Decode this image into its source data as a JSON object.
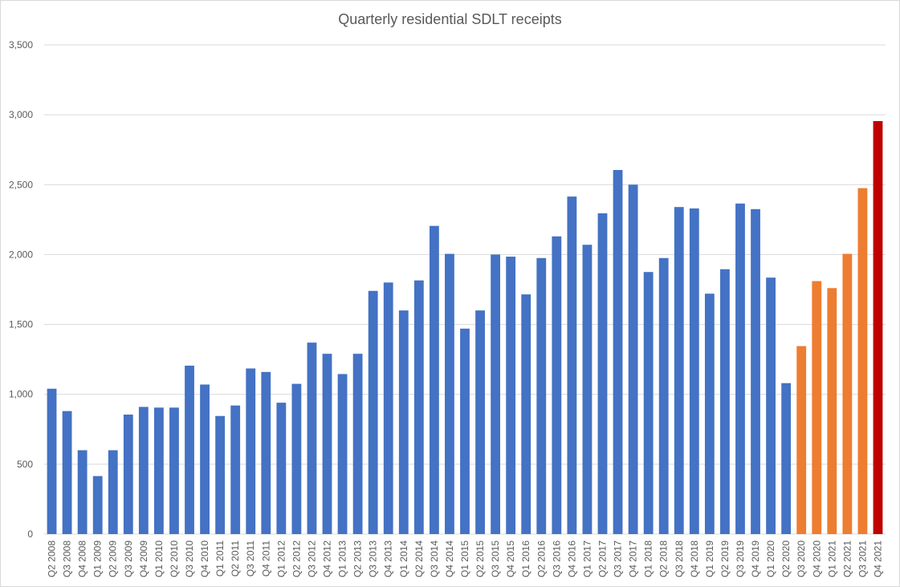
{
  "chart_data": {
    "type": "bar",
    "title": "Quarterly residential SDLT receipts",
    "xlabel": "",
    "ylabel": "",
    "ylim": [
      0,
      3500
    ],
    "yticks": [
      0,
      500,
      1000,
      1500,
      2000,
      2500,
      3000,
      3500
    ],
    "ytick_labels": [
      "0",
      "500",
      "1,000",
      "1,500",
      "2,000",
      "2,500",
      "3,000",
      "3,500"
    ],
    "grid": true,
    "legend": "none",
    "categories": [
      "Q2 2008",
      "Q3 2008",
      "Q4 2008",
      "Q1 2009",
      "Q2 2009",
      "Q3 2009",
      "Q4 2009",
      "Q1 2010",
      "Q2 2010",
      "Q3 2010",
      "Q4 2010",
      "Q1 2011",
      "Q2 2011",
      "Q3 2011",
      "Q4 2011",
      "Q1 2012",
      "Q2 2012",
      "Q3 2012",
      "Q4 2012",
      "Q1 2013",
      "Q2 2013",
      "Q3 2013",
      "Q4 2013",
      "Q1 2014",
      "Q2 2014",
      "Q3 2014",
      "Q4 2014",
      "Q1 2015",
      "Q2 2015",
      "Q3 2015",
      "Q4 2015",
      "Q1 2016",
      "Q2 2016",
      "Q3 2016",
      "Q4 2016",
      "Q1 2017",
      "Q2 2017",
      "Q3 2017",
      "Q4 2017",
      "Q1 2018",
      "Q2 2018",
      "Q3 2018",
      "Q4 2018",
      "Q1 2019",
      "Q2 2019",
      "Q3 2019",
      "Q4 2019",
      "Q1 2020",
      "Q2 2020",
      "Q3 2020",
      "Q4 2020",
      "Q1 2021",
      "Q2 2021",
      "Q3 2021",
      "Q4 2021"
    ],
    "values": [
      1040,
      880,
      600,
      415,
      600,
      855,
      910,
      905,
      905,
      1205,
      1070,
      845,
      920,
      1185,
      1160,
      940,
      1075,
      1370,
      1290,
      1145,
      1290,
      1740,
      1800,
      1600,
      1815,
      2205,
      2005,
      1470,
      1600,
      2000,
      1985,
      1715,
      1975,
      2130,
      2415,
      2070,
      2295,
      2605,
      2500,
      1875,
      1975,
      2340,
      2330,
      1720,
      1895,
      2365,
      2325,
      1835,
      1080,
      1345,
      1810,
      1760,
      2005,
      2475,
      2955
    ],
    "colors": {
      "default": "#4472c4",
      "highlight": "#ed7d31",
      "latest": "#c00000",
      "grid": "#d9d9d9",
      "axis": "#d9d9d9"
    },
    "highlight_range": [
      49,
      53
    ],
    "latest_index": 54
  }
}
